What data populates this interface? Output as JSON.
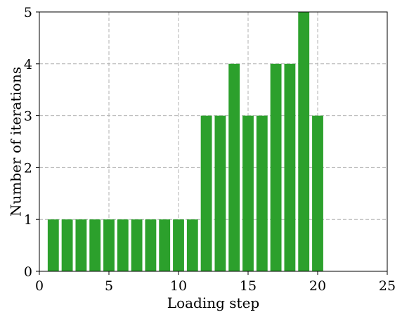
{
  "chart_data": {
    "type": "bar",
    "title": "",
    "xlabel": "Loading step",
    "ylabel": "Number of iterations",
    "x": [
      1,
      2,
      3,
      4,
      5,
      6,
      7,
      8,
      9,
      10,
      11,
      12,
      13,
      14,
      15,
      16,
      17,
      18,
      19,
      20
    ],
    "values": [
      1,
      1,
      1,
      1,
      1,
      1,
      1,
      1,
      1,
      1,
      1,
      3,
      3,
      4,
      3,
      3,
      4,
      4,
      5,
      3
    ],
    "xlim": [
      0,
      25
    ],
    "ylim": [
      0,
      5
    ],
    "xticks": [
      0,
      5,
      10,
      15,
      20,
      25
    ],
    "yticks": [
      0,
      1,
      2,
      3,
      4,
      5
    ],
    "xtick_labels": [
      "0",
      "5",
      "10",
      "15",
      "20",
      "25"
    ],
    "ytick_labels": [
      "0",
      "1",
      "2",
      "3",
      "4",
      "5"
    ],
    "grid": true,
    "bar_color": "#2ca02c",
    "grid_color": "#b0b0b0"
  }
}
